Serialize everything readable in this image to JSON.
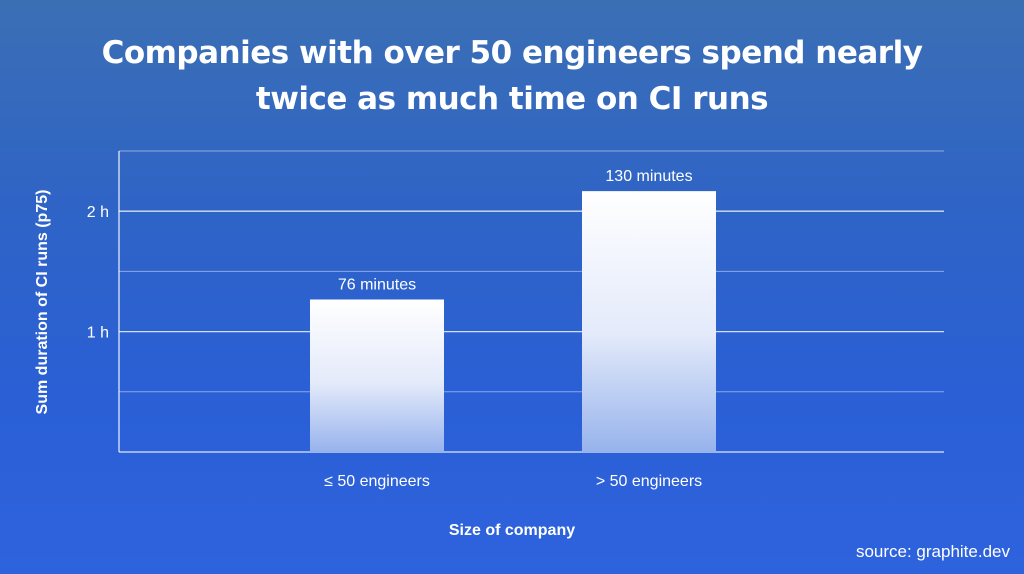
{
  "title_line1": "Companies with over 50 engineers spend nearly",
  "title_line2": "twice as much time on CI runs",
  "source": "source: graphite.dev",
  "colors": {
    "background_top": "#3b6fb4",
    "background_bottom": "#2e63de",
    "bar_top": "#ffffff",
    "bar_bottom": "#97b3ec",
    "grid": "#ffffff"
  },
  "chart_data": {
    "type": "bar",
    "title": "Companies with over 50 engineers spend nearly twice as much time on CI runs",
    "xlabel": "Size of company",
    "ylabel": "Sum duration of CI runs (p75)",
    "categories": [
      "≤ 50 engineers",
      "> 50 engineers"
    ],
    "values": [
      76,
      130
    ],
    "value_unit": "minutes",
    "data_labels": [
      "76 minutes",
      "130 minutes"
    ],
    "ylim": [
      0,
      150
    ],
    "y_ticks": [
      {
        "value": 60,
        "label": "1 h"
      },
      {
        "value": 120,
        "label": "2 h"
      }
    ],
    "minor_grid": [
      30,
      90,
      150
    ],
    "grid": true,
    "legend": "none"
  }
}
